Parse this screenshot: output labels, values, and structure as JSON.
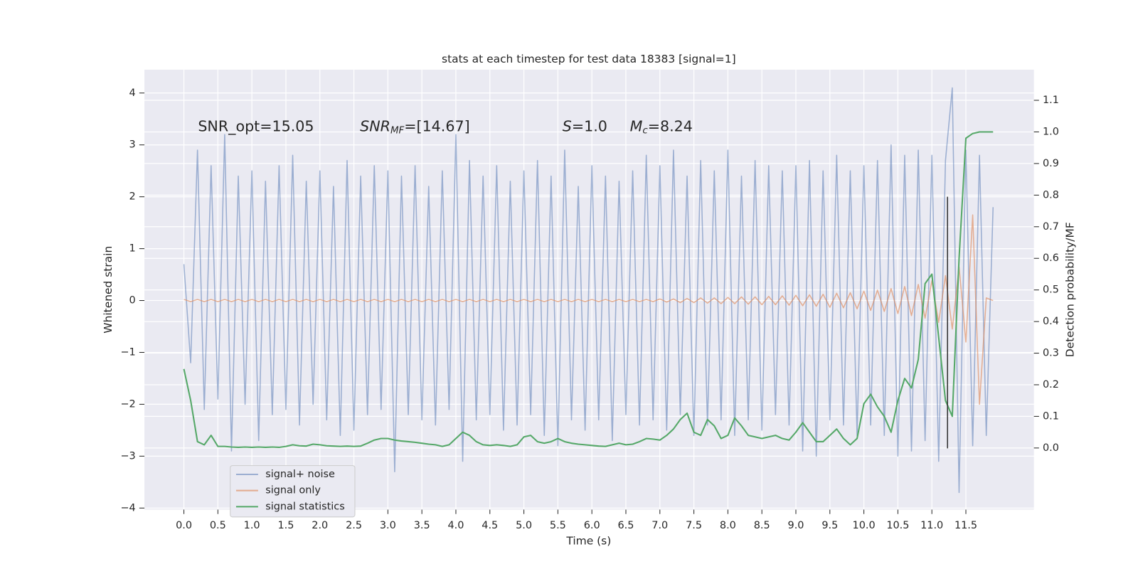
{
  "chart_data": {
    "type": "line",
    "title": "stats at each timestep for test data 18383 [signal=1]",
    "xlabel": "Time (s)",
    "ylabel": "Whitened strain",
    "y2label": "Detection probability/MF",
    "x": [
      0.0,
      0.1,
      0.2,
      0.3,
      0.4,
      0.5,
      0.6,
      0.7,
      0.8,
      0.9,
      1.0,
      1.1,
      1.2,
      1.3,
      1.4,
      1.5,
      1.6,
      1.7,
      1.8,
      1.9,
      2.0,
      2.1,
      2.2,
      2.3,
      2.4,
      2.5,
      2.6,
      2.7,
      2.8,
      2.9,
      3.0,
      3.1,
      3.2,
      3.3,
      3.4,
      3.5,
      3.6,
      3.7,
      3.8,
      3.9,
      4.0,
      4.1,
      4.2,
      4.3,
      4.4,
      4.5,
      4.6,
      4.7,
      4.8,
      4.9,
      5.0,
      5.1,
      5.2,
      5.3,
      5.4,
      5.5,
      5.6,
      5.7,
      5.8,
      5.9,
      6.0,
      6.1,
      6.2,
      6.3,
      6.4,
      6.5,
      6.6,
      6.7,
      6.8,
      6.9,
      7.0,
      7.1,
      7.2,
      7.3,
      7.4,
      7.5,
      7.6,
      7.7,
      7.8,
      7.9,
      8.0,
      8.1,
      8.2,
      8.3,
      8.4,
      8.5,
      8.6,
      8.7,
      8.8,
      8.9,
      9.0,
      9.1,
      9.2,
      9.3,
      9.4,
      9.5,
      9.6,
      9.7,
      9.8,
      9.9,
      10.0,
      10.1,
      10.2,
      10.3,
      10.4,
      10.5,
      10.6,
      10.7,
      10.8,
      10.9,
      11.0,
      11.1,
      11.2,
      11.3,
      11.4,
      11.5,
      11.6,
      11.7,
      11.8,
      11.9
    ],
    "series": [
      {
        "name": "signal+ noise",
        "color": "#4c72b0",
        "opacity": 0.5,
        "values": [
          0.7,
          -1.2,
          2.9,
          -2.1,
          2.6,
          -1.9,
          3.2,
          -2.9,
          2.4,
          -2.0,
          2.5,
          -2.7,
          2.3,
          -2.2,
          2.6,
          -2.1,
          2.8,
          -2.4,
          2.3,
          -2.0,
          2.5,
          -2.3,
          2.2,
          -2.6,
          2.7,
          -2.5,
          2.4,
          -2.2,
          2.6,
          -2.1,
          2.5,
          -3.3,
          2.4,
          -2.2,
          2.6,
          -2.3,
          2.2,
          -2.4,
          2.5,
          -2.1,
          3.2,
          -3.1,
          2.7,
          -2.3,
          2.4,
          -2.2,
          2.6,
          -2.5,
          2.3,
          -2.4,
          2.5,
          -2.2,
          2.7,
          -2.6,
          2.4,
          -2.8,
          2.9,
          -2.3,
          2.2,
          -2.5,
          2.6,
          -2.3,
          2.4,
          -2.7,
          2.3,
          -2.2,
          2.5,
          -2.4,
          2.8,
          -2.3,
          2.6,
          -2.5,
          2.9,
          -2.2,
          2.4,
          -2.6,
          2.7,
          -2.4,
          2.5,
          -2.3,
          2.9,
          -2.6,
          2.4,
          -2.3,
          2.7,
          -2.5,
          2.6,
          -2.2,
          2.5,
          -2.4,
          2.6,
          -2.9,
          2.7,
          -3.0,
          2.5,
          -2.3,
          2.8,
          -2.4,
          2.5,
          -2.6,
          2.6,
          -2.4,
          2.7,
          -2.6,
          3.0,
          -3.0,
          2.8,
          -2.9,
          2.9,
          -2.7,
          2.8,
          -3.1,
          2.7,
          4.1,
          -3.7,
          2.9,
          -2.8,
          2.8,
          -2.6,
          1.8
        ]
      },
      {
        "name": "signal only",
        "color": "#dd8452",
        "opacity": 0.6,
        "values": [
          0.02,
          -0.02,
          0.02,
          -0.02,
          0.02,
          -0.02,
          0.02,
          -0.02,
          0.02,
          -0.02,
          0.02,
          -0.02,
          0.02,
          -0.02,
          0.02,
          -0.02,
          0.02,
          -0.02,
          0.02,
          -0.02,
          0.02,
          -0.02,
          0.02,
          -0.02,
          0.02,
          -0.02,
          0.02,
          -0.02,
          0.02,
          -0.02,
          0.02,
          -0.02,
          0.02,
          -0.02,
          0.02,
          -0.02,
          0.02,
          -0.02,
          0.02,
          -0.02,
          0.02,
          -0.02,
          0.02,
          -0.02,
          0.02,
          -0.02,
          0.02,
          -0.02,
          0.02,
          -0.02,
          0.02,
          -0.02,
          0.02,
          -0.02,
          0.02,
          -0.02,
          0.02,
          -0.02,
          0.02,
          -0.02,
          0.02,
          -0.02,
          0.02,
          -0.02,
          0.02,
          -0.02,
          0.02,
          -0.02,
          0.02,
          -0.02,
          0.03,
          -0.03,
          0.03,
          -0.04,
          0.04,
          -0.04,
          0.05,
          -0.05,
          0.05,
          -0.06,
          0.06,
          -0.06,
          0.07,
          -0.07,
          0.07,
          -0.08,
          0.08,
          -0.08,
          0.09,
          -0.09,
          0.1,
          -0.1,
          0.11,
          -0.11,
          0.12,
          -0.13,
          0.14,
          -0.14,
          0.15,
          -0.16,
          0.18,
          -0.19,
          0.2,
          -0.21,
          0.23,
          -0.25,
          0.27,
          -0.29,
          0.31,
          -0.34,
          0.38,
          -0.42,
          0.48,
          -0.55,
          0.65,
          -0.8,
          1.65,
          -2.0,
          0.05,
          0
        ]
      },
      {
        "name": "signal statistics",
        "color": "#55a868",
        "opacity": 1,
        "axis": "y2",
        "values": [
          0.25,
          0.15,
          0.02,
          0.01,
          0.04,
          0.005,
          0.005,
          0.003,
          0.002,
          0.003,
          0.002,
          0.003,
          0.002,
          0.003,
          0.002,
          0.005,
          0.01,
          0.007,
          0.006,
          0.012,
          0.01,
          0.007,
          0.006,
          0.005,
          0.006,
          0.005,
          0.006,
          0.015,
          0.025,
          0.03,
          0.03,
          0.025,
          0.022,
          0.02,
          0.018,
          0.015,
          0.012,
          0.01,
          0.005,
          0.01,
          0.03,
          0.05,
          0.04,
          0.02,
          0.01,
          0.008,
          0.01,
          0.008,
          0.005,
          0.01,
          0.035,
          0.04,
          0.02,
          0.015,
          0.02,
          0.03,
          0.02,
          0.015,
          0.012,
          0.01,
          0.008,
          0.006,
          0.005,
          0.01,
          0.015,
          0.01,
          0.012,
          0.02,
          0.03,
          0.028,
          0.025,
          0.04,
          0.06,
          0.09,
          0.11,
          0.05,
          0.04,
          0.09,
          0.07,
          0.03,
          0.04,
          0.095,
          0.07,
          0.04,
          0.035,
          0.03,
          0.035,
          0.04,
          0.03,
          0.025,
          0.05,
          0.08,
          0.05,
          0.02,
          0.02,
          0.04,
          0.06,
          0.03,
          0.01,
          0.03,
          0.14,
          0.17,
          0.13,
          0.1,
          0.05,
          0.15,
          0.22,
          0.19,
          0.28,
          0.52,
          0.55,
          0.35,
          0.15,
          0.1,
          0.6,
          0.98,
          0.995,
          1.0,
          1.0,
          1.0
        ]
      }
    ],
    "vline": {
      "x": 11.23,
      "ymin": -2.85,
      "ymax": 2.0,
      "color": "#333333"
    },
    "annotations": [
      {
        "parts": [
          {
            "text": "SNR_opt=15.05"
          }
        ]
      },
      {
        "parts": [
          {
            "text": "SNR",
            "style": "italic"
          },
          {
            "text": "MF",
            "style": "italic-sub"
          },
          {
            "text": "=[14.67]"
          }
        ]
      },
      {
        "parts": [
          {
            "text": "S",
            "style": "italic"
          },
          {
            "text": "=1.0"
          }
        ]
      },
      {
        "parts": [
          {
            "text": "M",
            "style": "italic"
          },
          {
            "text": "c",
            "style": "italic-sub"
          },
          {
            "text": "=8.24"
          }
        ]
      }
    ],
    "xlim": [
      -0.58,
      12.5
    ],
    "ylim": [
      -4.03,
      4.45
    ],
    "y2lim": [
      -0.195,
      1.197
    ],
    "xticks": [
      {
        "value": 0,
        "label": "0.0"
      },
      0.5,
      {
        "value": 1,
        "label": "1.0"
      },
      1.5,
      {
        "value": 2,
        "label": "2.0"
      },
      2.5,
      {
        "value": 3,
        "label": "3.0"
      },
      3.5,
      {
        "value": 4,
        "label": "4.0"
      },
      4.5,
      {
        "value": 5,
        "label": "5.0"
      },
      5.5,
      {
        "value": 6,
        "label": "6.0"
      },
      6.5,
      {
        "value": 7,
        "label": "7.0"
      },
      7.5,
      {
        "value": 8,
        "label": "8.0"
      },
      8.5,
      {
        "value": 9,
        "label": "9.0"
      },
      9.5,
      {
        "value": 10,
        "label": "10.0"
      },
      10.5,
      {
        "value": 11,
        "label": "11.0"
      },
      11.5
    ],
    "yticks": [
      {
        "value": -4,
        "label": "−4"
      },
      {
        "value": -3,
        "label": "−3"
      },
      {
        "value": -2,
        "label": "−2"
      },
      {
        "value": -1,
        "label": "−1"
      },
      0,
      1,
      2,
      3,
      4
    ],
    "y2ticks": [
      {
        "value": 0,
        "label": "0.0"
      },
      0.1,
      0.2,
      0.3,
      0.4,
      0.5,
      0.6,
      0.7,
      0.8,
      0.9,
      {
        "value": 1,
        "label": "1.0"
      },
      1.1
    ],
    "grid": true,
    "legend": "lower left"
  }
}
